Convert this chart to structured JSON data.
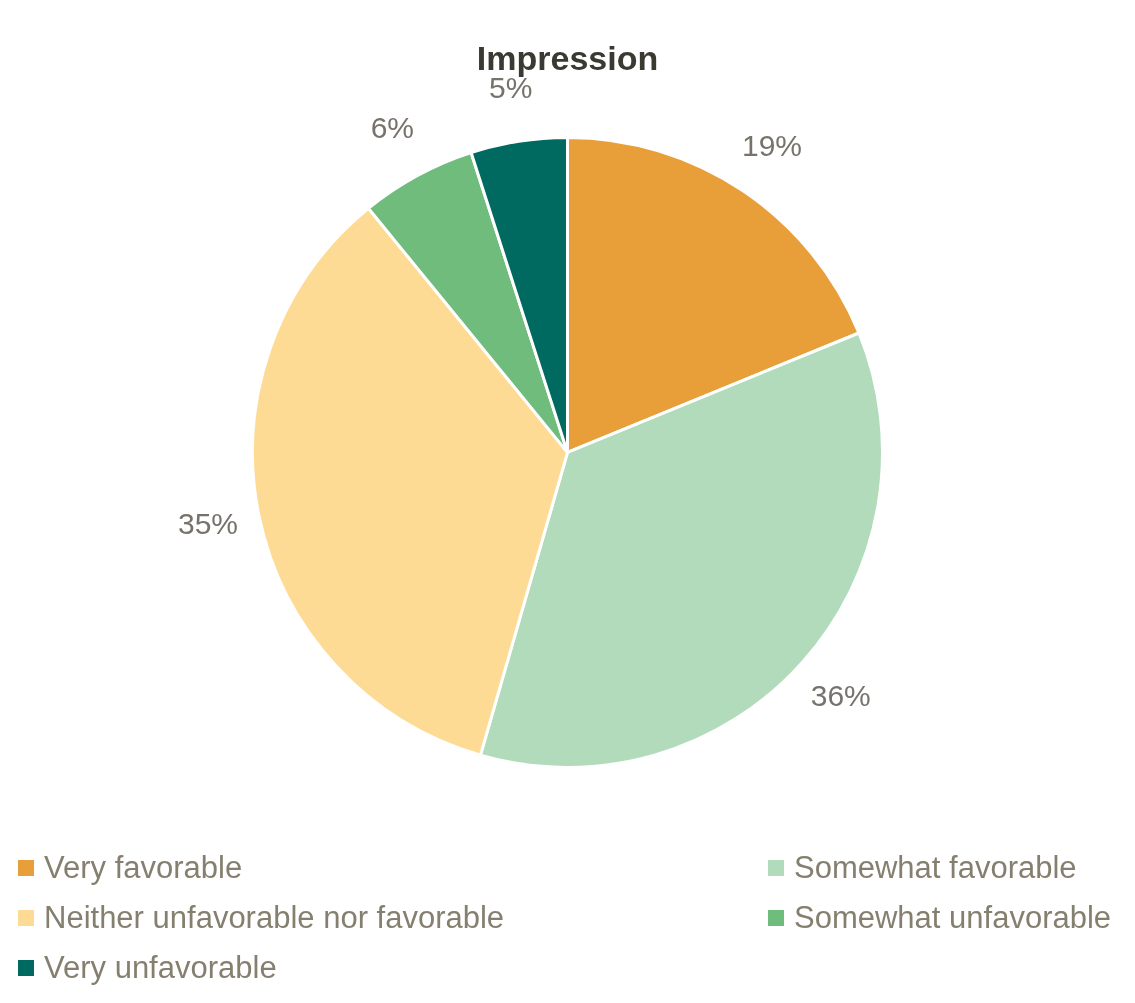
{
  "chart_data": {
    "type": "pie",
    "title": "Impression",
    "categories": [
      "Very favorable",
      "Somewhat favorable",
      "Neither unfavorable nor favorable",
      "Somewhat unfavorable",
      "Very unfavorable"
    ],
    "values": [
      19,
      36,
      35,
      6,
      5
    ],
    "colors": [
      "#e89f3a",
      "#b2dbbc",
      "#fedb94",
      "#70bc7c",
      "#006a60"
    ],
    "value_labels": [
      "19%",
      "36%",
      "35%",
      "6%",
      "5%"
    ],
    "legend": "bottom"
  }
}
